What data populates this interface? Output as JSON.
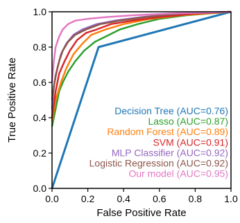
{
  "chart_data": {
    "type": "line",
    "xlabel": "False Positive Rate",
    "ylabel": "True Positive Rate",
    "xlim": [
      0,
      1
    ],
    "ylim": [
      0,
      1
    ],
    "x_ticks": [
      "0.0",
      "0.2",
      "0.4",
      "0.6",
      "0.8",
      "1.0"
    ],
    "y_ticks": [
      "0.0",
      "0.2",
      "0.4",
      "0.6",
      "0.8",
      "1.0"
    ],
    "grid": false,
    "legend_position": "bottom-right",
    "series": [
      {
        "name": "Decision Tree (AUC=0.76)",
        "color": "#1f77b4",
        "points": [
          [
            0,
            0
          ],
          [
            0.26,
            0.8
          ],
          [
            1,
            1
          ]
        ]
      },
      {
        "name": "Lasso (AUC=0.87)",
        "color": "#2ca02c",
        "points": [
          [
            0,
            0.35
          ],
          [
            0.02,
            0.45
          ],
          [
            0.04,
            0.55
          ],
          [
            0.06,
            0.6
          ],
          [
            0.09,
            0.66
          ],
          [
            0.13,
            0.72
          ],
          [
            0.18,
            0.78
          ],
          [
            0.24,
            0.83
          ],
          [
            0.3,
            0.86
          ],
          [
            0.38,
            0.9
          ],
          [
            0.48,
            0.93
          ],
          [
            0.6,
            0.96
          ],
          [
            0.75,
            0.98
          ],
          [
            1,
            1
          ]
        ]
      },
      {
        "name": "Random Forest (AUC=0.89)",
        "color": "#ff7f0e",
        "points": [
          [
            0,
            0.38
          ],
          [
            0.02,
            0.5
          ],
          [
            0.05,
            0.6
          ],
          [
            0.08,
            0.68
          ],
          [
            0.12,
            0.76
          ],
          [
            0.17,
            0.82
          ],
          [
            0.22,
            0.87
          ],
          [
            0.3,
            0.9
          ],
          [
            0.4,
            0.93
          ],
          [
            0.55,
            0.96
          ],
          [
            0.72,
            0.98
          ],
          [
            1,
            1
          ]
        ]
      },
      {
        "name": "SVM (AUC=0.91)",
        "color": "#d62728",
        "points": [
          [
            0,
            0.4
          ],
          [
            0.02,
            0.55
          ],
          [
            0.04,
            0.65
          ],
          [
            0.07,
            0.72
          ],
          [
            0.1,
            0.78
          ],
          [
            0.14,
            0.84
          ],
          [
            0.19,
            0.88
          ],
          [
            0.25,
            0.9
          ],
          [
            0.33,
            0.93
          ],
          [
            0.45,
            0.95
          ],
          [
            0.6,
            0.97
          ],
          [
            0.8,
            0.99
          ],
          [
            1,
            1
          ]
        ]
      },
      {
        "name": "MLP Classifier (AUC=0.92)",
        "color": "#9467bd",
        "points": [
          [
            0,
            0.45
          ],
          [
            0.01,
            0.58
          ],
          [
            0.03,
            0.68
          ],
          [
            0.05,
            0.76
          ],
          [
            0.08,
            0.82
          ],
          [
            0.12,
            0.87
          ],
          [
            0.17,
            0.9
          ],
          [
            0.25,
            0.93
          ],
          [
            0.35,
            0.95
          ],
          [
            0.5,
            0.97
          ],
          [
            0.7,
            0.99
          ],
          [
            1,
            1
          ]
        ]
      },
      {
        "name": "Logistic Regression (AUC=0.92)",
        "color": "#8c564b",
        "points": [
          [
            0,
            0.5
          ],
          [
            0.02,
            0.64
          ],
          [
            0.04,
            0.72
          ],
          [
            0.06,
            0.78
          ],
          [
            0.09,
            0.83
          ],
          [
            0.13,
            0.87
          ],
          [
            0.19,
            0.9
          ],
          [
            0.27,
            0.93
          ],
          [
            0.38,
            0.95
          ],
          [
            0.52,
            0.97
          ],
          [
            0.72,
            0.99
          ],
          [
            1,
            1
          ]
        ]
      },
      {
        "name": "Our model (AUC=0.95)",
        "color": "#e377c2",
        "points": [
          [
            0,
            0.6
          ],
          [
            0.01,
            0.72
          ],
          [
            0.02,
            0.8
          ],
          [
            0.04,
            0.86
          ],
          [
            0.06,
            0.9
          ],
          [
            0.09,
            0.93
          ],
          [
            0.13,
            0.95
          ],
          [
            0.2,
            0.96
          ],
          [
            0.3,
            0.97
          ],
          [
            0.45,
            0.98
          ],
          [
            0.65,
            0.99
          ],
          [
            1,
            1
          ]
        ]
      }
    ]
  }
}
